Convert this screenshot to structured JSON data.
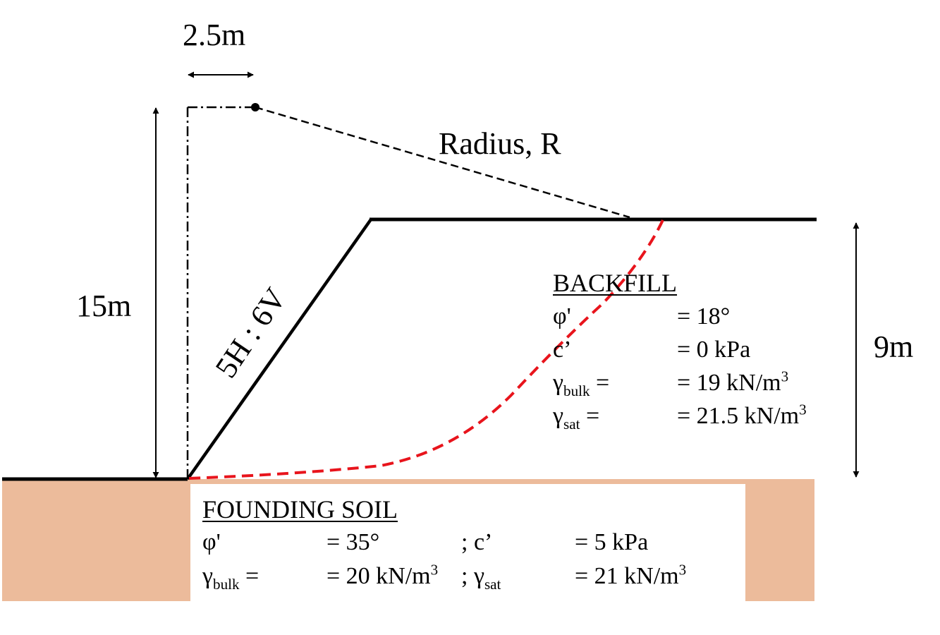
{
  "dimensions": {
    "offset_label": "2.5m",
    "total_height_label": "15m",
    "slope_height_label": "9m",
    "slope_ratio_label": "5H : 6V",
    "radius_label": "Radius, R"
  },
  "backfill": {
    "heading": "BACKFILL",
    "rows": [
      {
        "symbol": "φ'",
        "sub": "",
        "eq": "",
        "value": "= 18°",
        "sup": ""
      },
      {
        "symbol": "c’",
        "sub": "",
        "eq": "",
        "value": "= 0 kPa",
        "sup": ""
      },
      {
        "symbol": "γ",
        "sub": "bulk",
        "eq": " =",
        "value": "= 19 kN/m",
        "sup": "3"
      },
      {
        "symbol": "γ",
        "sub": "sat",
        "eq": " =",
        "value": "= 21.5 kN/m",
        "sup": "3"
      }
    ]
  },
  "founding_soil": {
    "heading": "FOUNDING SOIL",
    "row1": {
      "symbol": "φ'",
      "value": "= 35°",
      "sep": "; c’",
      "value2": "= 5 kPa"
    },
    "row2": {
      "symbol": "γ",
      "sub": "bulk",
      "eq": " =",
      "value": "= 20 kN/m",
      "sup": "3",
      "sep_symbol": "; γ",
      "sep_sub": "sat",
      "value2": "= 21 kN/m",
      "sup2": "3"
    }
  },
  "colors": {
    "soil_fill": "#ECBB9B",
    "slip_surface": "#E8141C",
    "lines": "#000000"
  }
}
